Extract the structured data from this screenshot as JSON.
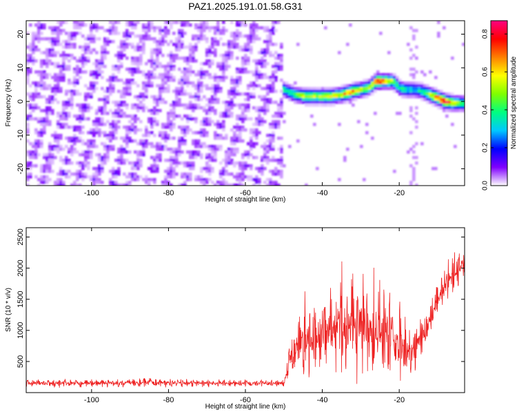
{
  "title": "PAZ1.2025.191.01.58.G31",
  "chart_data": [
    {
      "type": "heatmap",
      "xlabel": "Height of straight line (km)",
      "ylabel": "Frequency (Hz)",
      "xlim": [
        -117,
        -3
      ],
      "ylim": [
        -25,
        24
      ],
      "xticks": [
        -100,
        -80,
        -60,
        -40,
        -20
      ],
      "yticks": [
        -20,
        -10,
        0,
        10,
        20
      ],
      "colorbar": {
        "label": "Normalized spectral amplitude",
        "range": [
          0,
          0.87
        ],
        "ticks": [
          0.0,
          0.2,
          0.4,
          0.6,
          0.8
        ],
        "colors": [
          "#ffffff",
          "#8000ff",
          "#0000ff",
          "#00c8ff",
          "#00ff80",
          "#80ff00",
          "#ffff00",
          "#ff8000",
          "#ff0000",
          "#ff0080"
        ]
      },
      "noise_region_km": [
        -117,
        -50
      ],
      "signal_ridge": {
        "height_km": [
          -50,
          -47,
          -44,
          -41,
          -38,
          -35,
          -32,
          -30,
          -28,
          -26,
          -24,
          -22,
          -21,
          -20,
          -18,
          -16,
          -14,
          -12,
          -10,
          -8,
          -6,
          -3
        ],
        "frequency_hz": [
          3.5,
          2,
          1.5,
          1.5,
          1.5,
          2,
          3,
          3.5,
          4,
          6,
          6,
          6,
          5.5,
          4,
          3.5,
          3.5,
          3,
          2,
          1,
          0,
          -0.5,
          -0.5
        ],
        "amplitude": [
          0.35,
          0.45,
          0.55,
          0.5,
          0.55,
          0.6,
          0.7,
          0.55,
          0.5,
          0.75,
          0.7,
          0.55,
          0.45,
          0.4,
          0.35,
          0.3,
          0.4,
          0.55,
          0.7,
          0.8,
          0.6,
          0.45
        ]
      }
    },
    {
      "type": "line",
      "xlabel": "Height of straight line (km)",
      "ylabel": "SNR (10 * v/v)",
      "xlim": [
        -117,
        -3
      ],
      "ylim": [
        0,
        2650
      ],
      "xticks": [
        -100,
        -80,
        -60,
        -40,
        -20
      ],
      "yticks": [
        500,
        1000,
        1500,
        2000,
        2500
      ],
      "series": [
        {
          "color": "#ee2222",
          "envelope": {
            "x": [
              -117,
              -100,
              -85,
              -70,
              -51,
              -50,
              -48,
              -45,
              -43,
              -40,
              -37,
              -34,
              -31,
              -28,
              -25,
              -22,
              -20,
              -18,
              -16,
              -14,
              -12,
              -10,
              -8,
              -6,
              -3
            ],
            "center": [
              150,
              150,
              160,
              150,
              150,
              150,
              600,
              900,
              750,
              900,
              1000,
              1100,
              1200,
              1000,
              900,
              1000,
              800,
              650,
              700,
              900,
              1200,
              1500,
              1700,
              1900,
              2100
            ],
            "spread": [
              70,
              70,
              80,
              70,
              60,
              60,
              500,
              700,
              600,
              700,
              800,
              900,
              1100,
              850,
              800,
              900,
              700,
              550,
              450,
              350,
              300,
              300,
              300,
              300,
              250
            ]
          }
        }
      ]
    }
  ]
}
